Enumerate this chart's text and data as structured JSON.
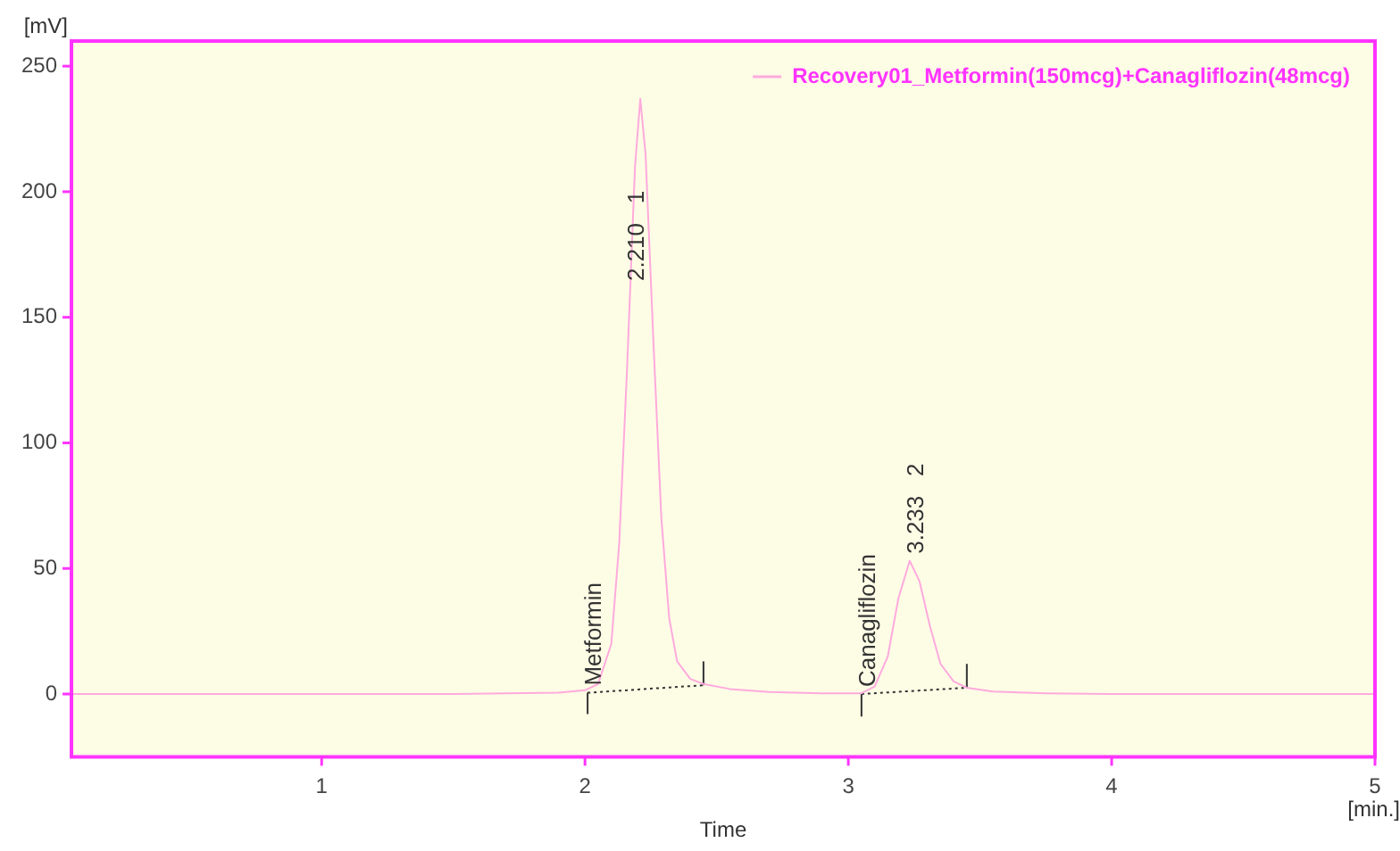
{
  "chart_data": {
    "type": "line",
    "xlabel": "Time",
    "ylabel": "[mV]",
    "xlim": [
      0.05,
      5
    ],
    "xticks": [
      1,
      2,
      3,
      4,
      5
    ],
    "ylim": [
      -25,
      260
    ],
    "yticks": [
      0,
      50,
      100,
      150,
      200,
      250
    ],
    "grid": false,
    "legend": "top right",
    "marker": "none",
    "series": [
      {
        "name": "Recovery01_Metformin(150mcg)+Canagliflozin(48mcg)",
        "color": "#ffaadd",
        "line_style": "solid",
        "x": [
          0.05,
          1.5,
          1.9,
          2.0,
          2.05,
          2.1,
          2.13,
          2.16,
          2.19,
          2.21,
          2.23,
          2.26,
          2.29,
          2.32,
          2.35,
          2.4,
          2.45,
          2.55,
          2.7,
          2.9,
          3.05,
          3.1,
          3.15,
          3.19,
          3.233,
          3.27,
          3.31,
          3.35,
          3.4,
          3.45,
          3.55,
          3.75,
          4.0,
          5
        ],
        "values": [
          0,
          0,
          0.5,
          1.5,
          4,
          20,
          60,
          130,
          210,
          237,
          215,
          140,
          70,
          30,
          13,
          6,
          4,
          2,
          0.8,
          0.3,
          0.3,
          3,
          15,
          38,
          53,
          45,
          27,
          12,
          5,
          2.5,
          1,
          0.3,
          0,
          0
        ]
      },
      {
        "color": "#333333",
        "line_style": "dotted",
        "x": [
          2.01,
          2.01,
          2.45,
          2.45
        ],
        "values": [
          -8,
          0.5,
          3.5,
          13
        ]
      },
      {
        "color": "#333333",
        "line_style": "dotted",
        "x": [
          3.05,
          3.05,
          3.45,
          3.45
        ],
        "values": [
          -9,
          0,
          2.5,
          12
        ]
      }
    ],
    "annotations": [
      {
        "text": "Metformin",
        "x": 2.01,
        "y": 0.5
      },
      {
        "text": "2.210   1",
        "x": 2.172,
        "y": 161.6
      },
      {
        "text": "Canagliflozin",
        "x": 3.05,
        "y": 0
      },
      {
        "text": "3.233   2",
        "x": 3.233,
        "y": 53
      },
      "[min.]"
    ]
  }
}
